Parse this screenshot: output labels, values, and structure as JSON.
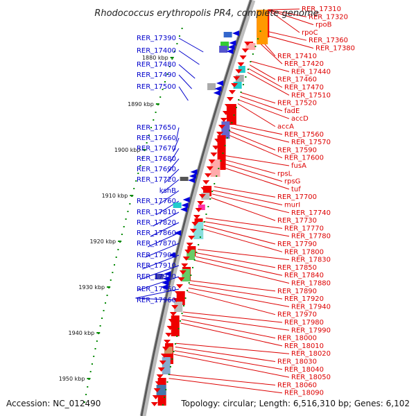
{
  "title": "Rhodococcus erythropolis PR4, complete genome",
  "footer": {
    "accession": "Accession: NC_012490",
    "topology": "Topology: circular; Length: 6,516,310 bp; Genes: 6,102"
  },
  "scale_ticks": [
    "1880 kbp",
    "1890 kbp",
    "1900 kbp",
    "1910 kbp",
    "1920 kbp",
    "1930 kbp",
    "1940 kbp",
    "1950 kbp"
  ],
  "left_genes": [
    "RER_17390",
    "RER_17400",
    "RER_17480",
    "RER_17490",
    "RER_17500",
    "RER_17650",
    "RER_17660",
    "RER_17670",
    "RER_17680",
    "RER_17690",
    "RER_17720",
    "kshB",
    "RER_17760",
    "RER_17810",
    "RER_17820",
    "RER_17860",
    "RER_17870",
    "RER_17900",
    "RER_17910",
    "RER_17930",
    "RER_17950",
    "RER_17960"
  ],
  "right_genes": [
    "RER_17310",
    "RER_17320",
    "rpoB",
    "rpoC",
    "RER_17360",
    "RER_17380",
    "RER_17410",
    "RER_17420",
    "RER_17440",
    "RER_17460",
    "RER_17470",
    "RER_17510",
    "RER_17520",
    "fadE",
    "accD",
    "accA",
    "RER_17560",
    "RER_17570",
    "RER_17590",
    "RER_17600",
    "fusA",
    "rpsL",
    "rpsG",
    "tuf",
    "RER_17700",
    "murI",
    "RER_17740",
    "RER_17730",
    "RER_17770",
    "RER_17780",
    "RER_17790",
    "RER_17800",
    "RER_17830",
    "RER_17850",
    "RER_17840",
    "RER_17880",
    "RER_17890",
    "RER_17920",
    "RER_17940",
    "RER_17970",
    "RER_17980",
    "RER_17990",
    "RER_18000",
    "RER_18010",
    "RER_18020",
    "RER_18030",
    "RER_18040",
    "RER_18050",
    "RER_18060",
    "RER_18090"
  ],
  "colors": {
    "left_label": "#0000cc",
    "right_label": "#dd0000",
    "tick": "#008800",
    "backbone": "#777777"
  }
}
